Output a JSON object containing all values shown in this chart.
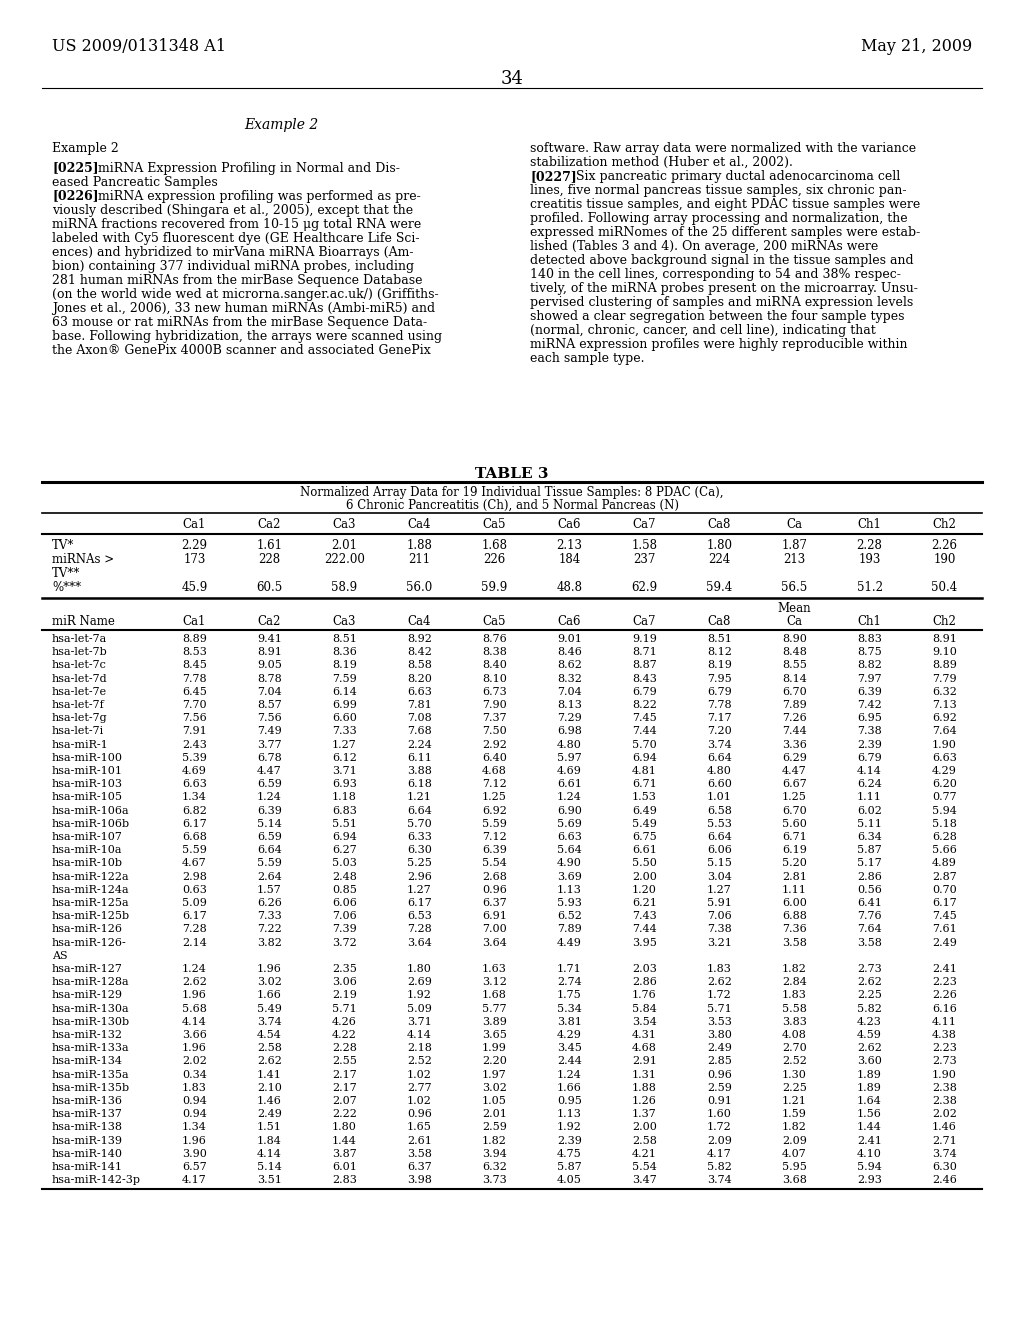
{
  "header_left": "US 2009/0131348 A1",
  "header_right": "May 21, 2009",
  "page_number": "34",
  "left_col_lines": [
    "Example 2",
    "",
    "[0225]   miRNA Expression Profiling in Normal and Dis-",
    "eased Pancreatic Samples",
    "[0226]   miRNA expression profiling was performed as pre-",
    "viously described (Shingara et al., 2005), except that the",
    "miRNA fractions recovered from 10-15 μg total RNA were",
    "labeled with Cy5 fluorescent dye (GE Healthcare Life Sci-",
    "ences) and hybridized to mirVana miRNA Bioarrays (Am-",
    "bion) containing 377 individual miRNA probes, including",
    "281 human miRNAs from the mirBase Sequence Database",
    "(on the world wide wed at microrna.sanger.ac.uk/) (Griffiths-",
    "Jones et al., 2006), 33 new human miRNAs (Ambi-miR5) and",
    "63 mouse or rat miRNAs from the mirBase Sequence Data-",
    "base. Following hybridization, the arrays were scanned using",
    "the Axon® GenePix 4000B scanner and associated GenePix"
  ],
  "right_col_lines": [
    "software. Raw array data were normalized with the variance",
    "stabilization method (Huber et al., 2002).",
    "[0227]   Six pancreatic primary ductal adenocarcinoma cell",
    "lines, five normal pancreas tissue samples, six chronic pan-",
    "creatitis tissue samples, and eight PDAC tissue samples were",
    "profiled. Following array processing and normalization, the",
    "expressed miRNomes of the 25 different samples were estab-",
    "lished (Tables 3 and 4). On average, 200 miRNAs were",
    "detected above background signal in the tissue samples and",
    "140 in the cell lines, corresponding to 54 and 38% respec-",
    "tively, of the miRNA probes present on the microarray. Unsu-",
    "pervised clustering of samples and miRNA expression levels",
    "showed a clear segregation between the four sample types",
    "(normal, chronic, cancer, and cell line), indicating that",
    "miRNA expression profiles were highly reproducible within",
    "each sample type."
  ],
  "table_title": "TABLE 3",
  "table_subtitle1": "Normalized Array Data for 19 Individual Tissue Samples: 8 PDAC (Ca),",
  "table_subtitle2": "6 Chronic Pancreatitis (Ch), and 5 Normal Pancreas (N)",
  "col_headers": [
    "Ca1",
    "Ca2",
    "Ca3",
    "Ca4",
    "Ca5",
    "Ca6",
    "Ca7",
    "Ca8",
    "Ca",
    "Ch1",
    "Ch2"
  ],
  "tv_row": [
    "2.29",
    "1.61",
    "2.01",
    "1.88",
    "1.68",
    "2.13",
    "1.58",
    "1.80",
    "1.87",
    "2.28",
    "2.26"
  ],
  "mirna_row": [
    "173",
    "228",
    "222.00",
    "211",
    "226",
    "184",
    "237",
    "224",
    "213",
    "193",
    "190"
  ],
  "pct_row": [
    "45.9",
    "60.5",
    "58.9",
    "56.0",
    "59.9",
    "48.8",
    "62.9",
    "59.4",
    "56.5",
    "51.2",
    "50.4"
  ],
  "data_rows": [
    [
      "hsa-let-7a",
      "8.89",
      "9.41",
      "8.51",
      "8.92",
      "8.76",
      "9.01",
      "9.19",
      "8.51",
      "8.90",
      "8.83",
      "8.91"
    ],
    [
      "hsa-let-7b",
      "8.53",
      "8.91",
      "8.36",
      "8.42",
      "8.38",
      "8.46",
      "8.71",
      "8.12",
      "8.48",
      "8.75",
      "9.10"
    ],
    [
      "hsa-let-7c",
      "8.45",
      "9.05",
      "8.19",
      "8.58",
      "8.40",
      "8.62",
      "8.87",
      "8.19",
      "8.55",
      "8.82",
      "8.89"
    ],
    [
      "hsa-let-7d",
      "7.78",
      "8.78",
      "7.59",
      "8.20",
      "8.10",
      "8.32",
      "8.43",
      "7.95",
      "8.14",
      "7.97",
      "7.79"
    ],
    [
      "hsa-let-7e",
      "6.45",
      "7.04",
      "6.14",
      "6.63",
      "6.73",
      "7.04",
      "6.79",
      "6.79",
      "6.70",
      "6.39",
      "6.32"
    ],
    [
      "hsa-let-7f",
      "7.70",
      "8.57",
      "6.99",
      "7.81",
      "7.90",
      "8.13",
      "8.22",
      "7.78",
      "7.89",
      "7.42",
      "7.13"
    ],
    [
      "hsa-let-7g",
      "7.56",
      "7.56",
      "6.60",
      "7.08",
      "7.37",
      "7.29",
      "7.45",
      "7.17",
      "7.26",
      "6.95",
      "6.92"
    ],
    [
      "hsa-let-7i",
      "7.91",
      "7.49",
      "7.33",
      "7.68",
      "7.50",
      "6.98",
      "7.44",
      "7.20",
      "7.44",
      "7.38",
      "7.64"
    ],
    [
      "hsa-miR-1",
      "2.43",
      "3.77",
      "1.27",
      "2.24",
      "2.92",
      "4.80",
      "5.70",
      "3.74",
      "3.36",
      "2.39",
      "1.90"
    ],
    [
      "hsa-miR-100",
      "5.39",
      "6.78",
      "6.12",
      "6.11",
      "6.40",
      "5.97",
      "6.94",
      "6.64",
      "6.29",
      "6.79",
      "6.63"
    ],
    [
      "hsa-miR-101",
      "4.69",
      "4.47",
      "3.71",
      "3.88",
      "4.68",
      "4.69",
      "4.81",
      "4.80",
      "4.47",
      "4.14",
      "4.29"
    ],
    [
      "hsa-miR-103",
      "6.63",
      "6.59",
      "6.93",
      "6.18",
      "7.12",
      "6.61",
      "6.71",
      "6.60",
      "6.67",
      "6.24",
      "6.20"
    ],
    [
      "hsa-miR-105",
      "1.34",
      "1.24",
      "1.18",
      "1.21",
      "1.25",
      "1.24",
      "1.53",
      "1.01",
      "1.25",
      "1.11",
      "0.77"
    ],
    [
      "hsa-miR-106a",
      "6.82",
      "6.39",
      "6.83",
      "6.64",
      "6.92",
      "6.90",
      "6.49",
      "6.58",
      "6.70",
      "6.02",
      "5.94"
    ],
    [
      "hsa-miR-106b",
      "6.17",
      "5.14",
      "5.51",
      "5.70",
      "5.59",
      "5.69",
      "5.49",
      "5.53",
      "5.60",
      "5.11",
      "5.18"
    ],
    [
      "hsa-miR-107",
      "6.68",
      "6.59",
      "6.94",
      "6.33",
      "7.12",
      "6.63",
      "6.75",
      "6.64",
      "6.71",
      "6.34",
      "6.28"
    ],
    [
      "hsa-miR-10a",
      "5.59",
      "6.64",
      "6.27",
      "6.30",
      "6.39",
      "5.64",
      "6.61",
      "6.06",
      "6.19",
      "5.87",
      "5.66"
    ],
    [
      "hsa-miR-10b",
      "4.67",
      "5.59",
      "5.03",
      "5.25",
      "5.54",
      "4.90",
      "5.50",
      "5.15",
      "5.20",
      "5.17",
      "4.89"
    ],
    [
      "hsa-miR-122a",
      "2.98",
      "2.64",
      "2.48",
      "2.96",
      "2.68",
      "3.69",
      "2.00",
      "3.04",
      "2.81",
      "2.86",
      "2.87"
    ],
    [
      "hsa-miR-124a",
      "0.63",
      "1.57",
      "0.85",
      "1.27",
      "0.96",
      "1.13",
      "1.20",
      "1.27",
      "1.11",
      "0.56",
      "0.70"
    ],
    [
      "hsa-miR-125a",
      "5.09",
      "6.26",
      "6.06",
      "6.17",
      "6.37",
      "5.93",
      "6.21",
      "5.91",
      "6.00",
      "6.41",
      "6.17"
    ],
    [
      "hsa-miR-125b",
      "6.17",
      "7.33",
      "7.06",
      "6.53",
      "6.91",
      "6.52",
      "7.43",
      "7.06",
      "6.88",
      "7.76",
      "7.45"
    ],
    [
      "hsa-miR-126",
      "7.28",
      "7.22",
      "7.39",
      "7.28",
      "7.00",
      "7.89",
      "7.44",
      "7.38",
      "7.36",
      "7.64",
      "7.61"
    ],
    [
      "hsa-miR-126-AS",
      "2.14",
      "3.82",
      "3.72",
      "3.64",
      "3.64",
      "4.49",
      "3.95",
      "3.21",
      "3.58",
      "3.58",
      "2.49"
    ],
    [
      "hsa-miR-127",
      "1.24",
      "1.96",
      "2.35",
      "1.80",
      "1.63",
      "1.71",
      "2.03",
      "1.83",
      "1.82",
      "2.73",
      "2.41"
    ],
    [
      "hsa-miR-128a",
      "2.62",
      "3.02",
      "3.06",
      "2.69",
      "3.12",
      "2.74",
      "2.86",
      "2.62",
      "2.84",
      "2.62",
      "2.23"
    ],
    [
      "hsa-miR-129",
      "1.96",
      "1.66",
      "2.19",
      "1.92",
      "1.68",
      "1.75",
      "1.76",
      "1.72",
      "1.83",
      "2.25",
      "2.26"
    ],
    [
      "hsa-miR-130a",
      "5.68",
      "5.49",
      "5.71",
      "5.09",
      "5.77",
      "5.34",
      "5.84",
      "5.71",
      "5.58",
      "5.82",
      "6.16"
    ],
    [
      "hsa-miR-130b",
      "4.14",
      "3.74",
      "4.26",
      "3.71",
      "3.89",
      "3.81",
      "3.54",
      "3.53",
      "3.83",
      "4.23",
      "4.11"
    ],
    [
      "hsa-miR-132",
      "3.66",
      "4.54",
      "4.22",
      "4.14",
      "3.65",
      "4.29",
      "4.31",
      "3.80",
      "4.08",
      "4.59",
      "4.38"
    ],
    [
      "hsa-miR-133a",
      "1.96",
      "2.58",
      "2.28",
      "2.18",
      "1.99",
      "3.45",
      "4.68",
      "2.49",
      "2.70",
      "2.62",
      "2.23"
    ],
    [
      "hsa-miR-134",
      "2.02",
      "2.62",
      "2.55",
      "2.52",
      "2.20",
      "2.44",
      "2.91",
      "2.85",
      "2.52",
      "3.60",
      "2.73"
    ],
    [
      "hsa-miR-135a",
      "0.34",
      "1.41",
      "2.17",
      "1.02",
      "1.97",
      "1.24",
      "1.31",
      "0.96",
      "1.30",
      "1.89",
      "1.90"
    ],
    [
      "hsa-miR-135b",
      "1.83",
      "2.10",
      "2.17",
      "2.77",
      "3.02",
      "1.66",
      "1.88",
      "2.59",
      "2.25",
      "1.89",
      "2.38"
    ],
    [
      "hsa-miR-136",
      "0.94",
      "1.46",
      "2.07",
      "1.02",
      "1.05",
      "0.95",
      "1.26",
      "0.91",
      "1.21",
      "1.64",
      "2.38"
    ],
    [
      "hsa-miR-137",
      "0.94",
      "2.49",
      "2.22",
      "0.96",
      "2.01",
      "1.13",
      "1.37",
      "1.60",
      "1.59",
      "1.56",
      "2.02"
    ],
    [
      "hsa-miR-138",
      "1.34",
      "1.51",
      "1.80",
      "1.65",
      "2.59",
      "1.92",
      "2.00",
      "1.72",
      "1.82",
      "1.44",
      "1.46"
    ],
    [
      "hsa-miR-139",
      "1.96",
      "1.84",
      "1.44",
      "2.61",
      "1.82",
      "2.39",
      "2.58",
      "2.09",
      "2.09",
      "2.41",
      "2.71"
    ],
    [
      "hsa-miR-140",
      "3.90",
      "4.14",
      "3.87",
      "3.58",
      "3.94",
      "4.75",
      "4.21",
      "4.17",
      "4.07",
      "4.10",
      "3.74"
    ],
    [
      "hsa-miR-141",
      "6.57",
      "5.14",
      "6.01",
      "6.37",
      "6.32",
      "5.87",
      "5.54",
      "5.82",
      "5.95",
      "5.94",
      "6.30"
    ],
    [
      "hsa-miR-142-3p",
      "4.17",
      "3.51",
      "2.83",
      "3.98",
      "3.73",
      "4.05",
      "3.47",
      "3.74",
      "3.68",
      "2.93",
      "2.46"
    ]
  ]
}
